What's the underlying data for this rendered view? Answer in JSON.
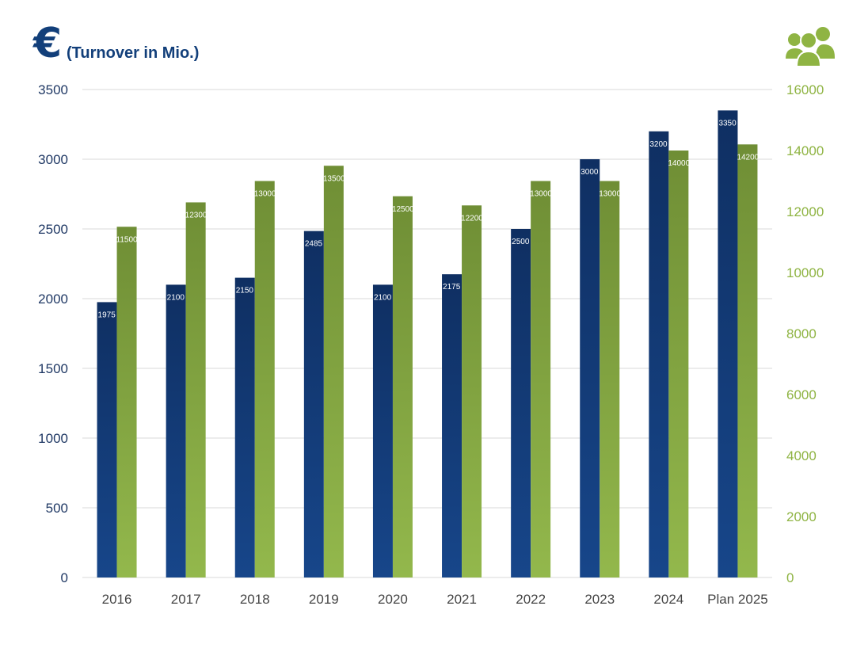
{
  "header": {
    "currency_symbol": "€",
    "title": "(Turnover in Mio.)",
    "people_icon": "people-group-icon"
  },
  "colors": {
    "title": "#123f7a",
    "turnover_top": "#0f2f62",
    "turnover_bottom": "#17468a",
    "employees_top": "#6f8e35",
    "employees_bottom": "#93b84c",
    "left_axis_text": "#1f3864",
    "right_axis_text": "#8fb443",
    "category_text": "#444444",
    "grid": "#d9d9d9"
  },
  "chart_data": {
    "type": "bar",
    "categories": [
      "2016",
      "2017",
      "2018",
      "2019",
      "2020",
      "2021",
      "2022",
      "2023",
      "2024",
      "Plan 2025"
    ],
    "series": [
      {
        "values": [
          1975,
          2100,
          2150,
          2485,
          2100,
          2175,
          2500,
          3000,
          3200,
          3350
        ],
        "axis": "left"
      },
      {
        "values": [
          11500,
          12300,
          13000,
          13500,
          12500,
          12200,
          13000,
          13000,
          14000,
          14200
        ],
        "axis": "right"
      }
    ],
    "left_axis": {
      "ylim": [
        0,
        3500
      ],
      "ticks": [
        "0",
        "500",
        "1000",
        "1500",
        "2000",
        "2500",
        "3000",
        "3500"
      ]
    },
    "right_axis": {
      "ylim": [
        0,
        16000
      ],
      "ticks": [
        "0",
        "2000",
        "4000",
        "6000",
        "8000",
        "10000",
        "12000",
        "14000",
        "16000"
      ]
    },
    "grid": true,
    "data_labels": true
  }
}
